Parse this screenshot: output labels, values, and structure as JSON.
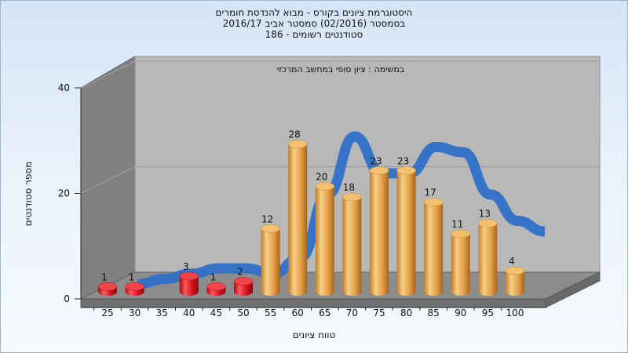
{
  "chart_data": {
    "type": "bar",
    "title_lines": [
      "היסטוגרמת ציונים בקורס - מבוא להנדסת חומרים",
      "בסמסטר  (02/2016)  סמסטר אביב 2016/17",
      "סטודנטים רשומים - 186"
    ],
    "annotation": "במשימה : ציון סופי במחשב המרכזי",
    "xlabel": "טווח ציונים",
    "ylabel": "מספר סטודנטים",
    "ylim": [
      0,
      40
    ],
    "yticks": [
      0,
      20,
      40
    ],
    "categories": [
      "25",
      "30",
      "35",
      "40",
      "45",
      "50",
      "55",
      "60",
      "65",
      "70",
      "75",
      "80",
      "85",
      "90",
      "95",
      "100"
    ],
    "series": [
      {
        "values": [
          1,
          1,
          null,
          3,
          1,
          2,
          12,
          28,
          20,
          18,
          23,
          23,
          17,
          11,
          13,
          4
        ],
        "colors": {
          "failing": "#d8141c",
          "passing": "#e6a24a"
        },
        "passing_threshold": 55
      }
    ],
    "trend_curve": {
      "color": "#2f6fc7",
      "values": [
        1,
        2,
        3,
        4,
        4,
        3,
        6,
        18,
        29,
        22,
        22,
        27,
        26,
        18,
        13,
        11
      ]
    },
    "grid": true,
    "colors": {
      "back_wall": "#b8b8b8",
      "side_wall": "#808080",
      "floor": "#8c8c8c"
    }
  }
}
